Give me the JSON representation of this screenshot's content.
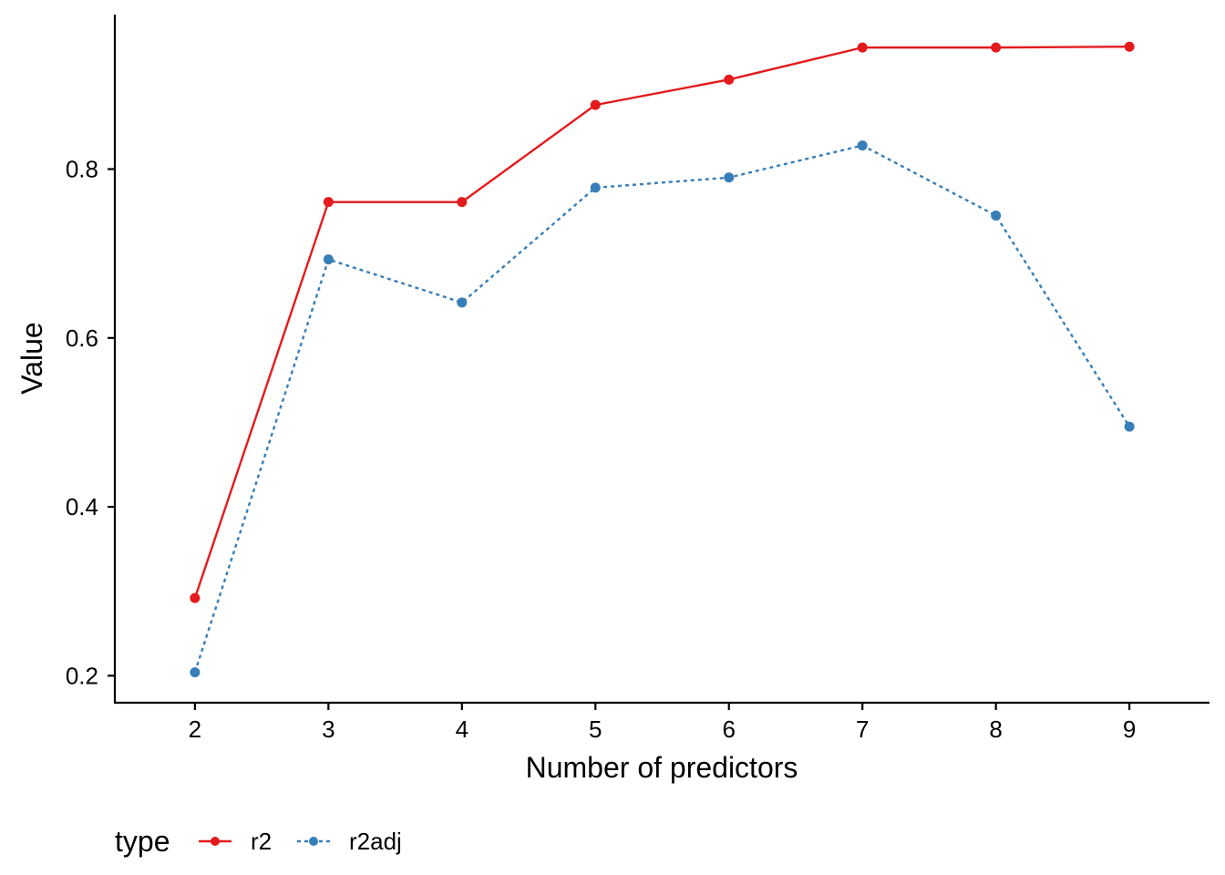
{
  "chart_data": {
    "type": "line",
    "title": "",
    "xlabel": "Number of predictors",
    "ylabel": "Value",
    "x": [
      2,
      3,
      4,
      5,
      6,
      7,
      8,
      9
    ],
    "xlim": [
      1.4,
      9.6
    ],
    "ylim": [
      0.168,
      0.983
    ],
    "yticks": [
      0.2,
      0.4,
      0.6,
      0.8
    ],
    "y_tick_labels": [
      "0.2",
      "0.4",
      "0.6",
      "0.8"
    ],
    "x_tick_labels": [
      "2",
      "3",
      "4",
      "5",
      "6",
      "7",
      "8",
      "9"
    ],
    "grid": false,
    "legend": {
      "title": "type",
      "placement": "bottom-left"
    },
    "series": [
      {
        "name": "r2",
        "color": "#E41A1C",
        "line_style": "solid",
        "values": [
          0.292,
          0.761,
          0.761,
          0.876,
          0.906,
          0.944,
          0.944,
          0.945
        ]
      },
      {
        "name": "r2adj",
        "color": "#377EB8",
        "line_style": "dotted",
        "values": [
          0.204,
          0.693,
          0.642,
          0.778,
          0.79,
          0.828,
          0.745,
          0.495
        ]
      }
    ]
  }
}
